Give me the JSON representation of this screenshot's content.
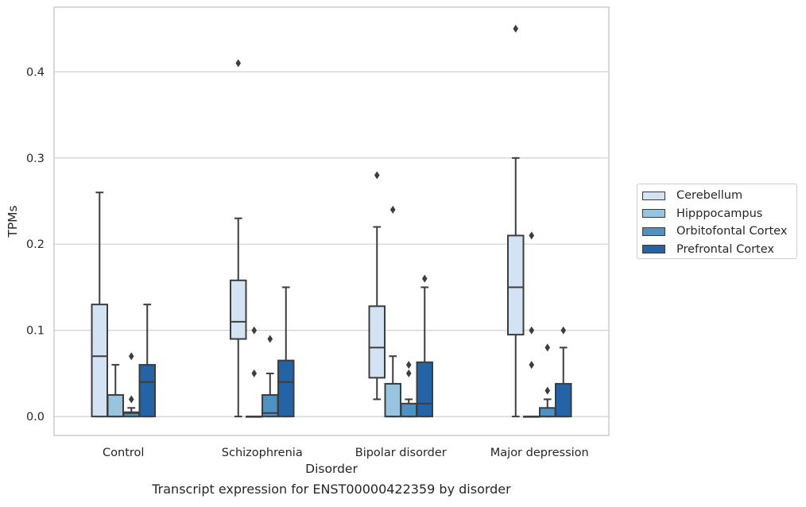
{
  "chart_data": {
    "type": "box",
    "title": "",
    "caption": "Transcript expression for ENST00000422359 by disorder",
    "xlabel": "Disorder",
    "ylabel": "TPMs",
    "ylim": [
      -0.022,
      0.475
    ],
    "yticks": [
      0.0,
      0.1,
      0.2,
      0.3,
      0.4
    ],
    "ytick_labels": [
      "0.0",
      "0.1",
      "0.2",
      "0.3",
      "0.4"
    ],
    "grid": "horizontal",
    "legend_position": "right",
    "categories": [
      "Control",
      "Schizophrenia",
      "Bipolar disorder",
      "Major depression"
    ],
    "series": [
      {
        "name": "Cerebellum",
        "color": "#d3e3f3",
        "boxes": [
          {
            "whislo": 0.0,
            "q1": 0.0,
            "med": 0.07,
            "q3": 0.13,
            "whishi": 0.26,
            "fliers": []
          },
          {
            "whislo": 0.0,
            "q1": 0.09,
            "med": 0.11,
            "q3": 0.158,
            "whishi": 0.23,
            "fliers": [
              0.41
            ]
          },
          {
            "whislo": 0.02,
            "q1": 0.045,
            "med": 0.08,
            "q3": 0.128,
            "whishi": 0.22,
            "fliers": [
              0.28
            ]
          },
          {
            "whislo": 0.0,
            "q1": 0.095,
            "med": 0.15,
            "q3": 0.21,
            "whishi": 0.3,
            "fliers": [
              0.45
            ]
          }
        ]
      },
      {
        "name": "Hipppocampus",
        "color": "#99c4df",
        "boxes": [
          {
            "whislo": 0.0,
            "q1": 0.0,
            "med": 0.0,
            "q3": 0.025,
            "whishi": 0.06,
            "fliers": []
          },
          {
            "whislo": 0.0,
            "q1": 0.0,
            "med": 0.0,
            "q3": 0.0,
            "whishi": 0.0,
            "fliers": [
              0.05,
              0.1
            ]
          },
          {
            "whislo": 0.0,
            "q1": 0.0,
            "med": 0.0,
            "q3": 0.038,
            "whishi": 0.07,
            "fliers": [
              0.24
            ]
          },
          {
            "whislo": 0.0,
            "q1": 0.0,
            "med": 0.0,
            "q3": 0.0,
            "whishi": 0.0,
            "fliers": [
              0.06,
              0.1,
              0.21
            ]
          }
        ]
      },
      {
        "name": "Orbitofontal Cortex",
        "color": "#4e92c3",
        "boxes": [
          {
            "whislo": 0.0,
            "q1": 0.0,
            "med": 0.004,
            "q3": 0.005,
            "whishi": 0.01,
            "fliers": [
              0.02,
              0.07
            ]
          },
          {
            "whislo": 0.0,
            "q1": 0.0,
            "med": 0.004,
            "q3": 0.025,
            "whishi": 0.05,
            "fliers": [
              0.09
            ]
          },
          {
            "whislo": 0.0,
            "q1": 0.0,
            "med": 0.0,
            "q3": 0.015,
            "whishi": 0.02,
            "fliers": [
              0.05,
              0.06
            ]
          },
          {
            "whislo": 0.0,
            "q1": 0.0,
            "med": 0.0,
            "q3": 0.01,
            "whishi": 0.02,
            "fliers": [
              0.03,
              0.08
            ]
          }
        ]
      },
      {
        "name": "Prefrontal Cortex",
        "color": "#2463a6",
        "boxes": [
          {
            "whislo": 0.0,
            "q1": 0.0,
            "med": 0.04,
            "q3": 0.06,
            "whishi": 0.13,
            "fliers": []
          },
          {
            "whislo": 0.0,
            "q1": 0.0,
            "med": 0.04,
            "q3": 0.065,
            "whishi": 0.15,
            "fliers": []
          },
          {
            "whislo": 0.0,
            "q1": 0.0,
            "med": 0.015,
            "q3": 0.063,
            "whishi": 0.15,
            "fliers": [
              0.16
            ]
          },
          {
            "whislo": 0.0,
            "q1": 0.0,
            "med": 0.0,
            "q3": 0.038,
            "whishi": 0.08,
            "fliers": [
              0.1
            ]
          }
        ]
      }
    ]
  }
}
